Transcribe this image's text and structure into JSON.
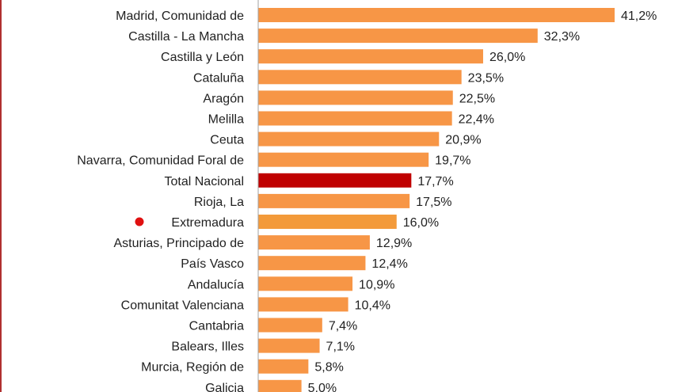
{
  "chart_data": {
    "type": "bar",
    "orientation": "horizontal",
    "categories": [
      "Madrid, Comunidad de",
      "Castilla - La Mancha",
      "Castilla y León",
      "Cataluña",
      "Aragón",
      "Melilla",
      "Ceuta",
      "Navarra, Comunidad Foral de",
      "Total Nacional",
      "Rioja, La",
      "Extremadura",
      "Asturias, Principado de",
      "País Vasco",
      "Andalucía",
      "Comunitat Valenciana",
      "Cantabria",
      "Balears, Illes",
      "Murcia, Región de",
      "Galicia"
    ],
    "values": [
      41.2,
      32.3,
      26.0,
      23.5,
      22.5,
      22.4,
      20.9,
      19.7,
      17.7,
      17.5,
      16.0,
      12.9,
      12.4,
      10.9,
      10.4,
      7.4,
      7.1,
      5.8,
      5.0
    ],
    "data_labels": [
      "41,2%",
      "32,3%",
      "26,0%",
      "23,5%",
      "22,5%",
      "22,4%",
      "20,9%",
      "19,7%",
      "17,7%",
      "17,5%",
      "16,0%",
      "12,9%",
      "12,4%",
      "10,9%",
      "10,4%",
      "7,4%",
      "7,1%",
      "5,8%",
      "5,0%"
    ],
    "unit": "%",
    "xlim": [
      0,
      45
    ],
    "grid": false,
    "colors": {
      "default": "#F79646",
      "Total Nacional": "#C00000",
      "Extremadura": "#F39A3A",
      "marker": "#E01010",
      "axis": "#A0A0A0"
    },
    "highlight_marker": "Extremadura"
  }
}
